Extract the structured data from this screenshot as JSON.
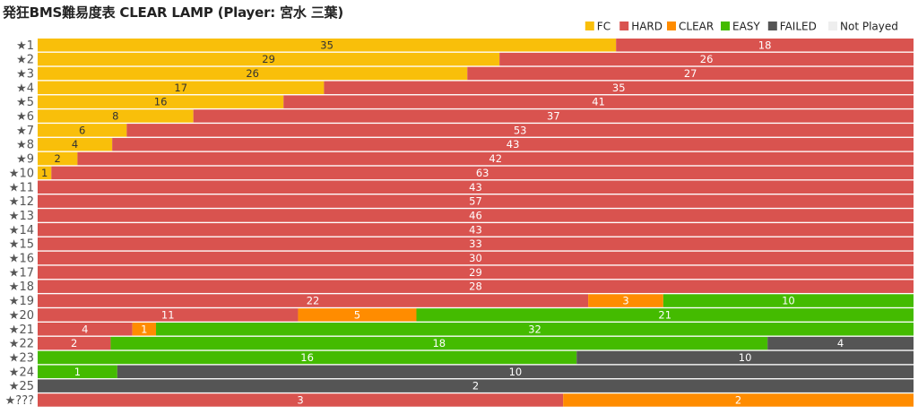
{
  "chart_data": {
    "type": "bar",
    "orientation": "horizontal",
    "stacked": "percent",
    "title": "発狂BMS難易度表 CLEAR LAMP (Player: 宮水 三葉)",
    "legend_position": "top-right",
    "grid": false,
    "categories": [
      "★1",
      "★2",
      "★3",
      "★4",
      "★5",
      "★6",
      "★7",
      "★8",
      "★9",
      "★10",
      "★11",
      "★12",
      "★13",
      "★14",
      "★15",
      "★16",
      "★17",
      "★18",
      "★19",
      "★20",
      "★21",
      "★22",
      "★23",
      "★24",
      "★25",
      "★???"
    ],
    "series": [
      {
        "name": "FC",
        "color": "#f9bf0a",
        "label_color": "#333333",
        "values": [
          35,
          29,
          26,
          17,
          16,
          8,
          6,
          4,
          2,
          1,
          0,
          0,
          0,
          0,
          0,
          0,
          0,
          0,
          0,
          0,
          0,
          0,
          0,
          0,
          0,
          0
        ]
      },
      {
        "name": "HARD",
        "color": "#d9534f",
        "label_color": "#ffffff",
        "values": [
          18,
          26,
          27,
          35,
          41,
          37,
          53,
          43,
          42,
          63,
          43,
          57,
          46,
          43,
          33,
          30,
          29,
          28,
          22,
          11,
          4,
          2,
          0,
          0,
          0,
          3
        ]
      },
      {
        "name": "CLEAR",
        "color": "#ff8c00",
        "label_color": "#ffffff",
        "values": [
          0,
          0,
          0,
          0,
          0,
          0,
          0,
          0,
          0,
          0,
          0,
          0,
          0,
          0,
          0,
          0,
          0,
          0,
          3,
          5,
          1,
          0,
          0,
          0,
          0,
          2
        ]
      },
      {
        "name": "EASY",
        "color": "#44bb00",
        "label_color": "#ffffff",
        "values": [
          0,
          0,
          0,
          0,
          0,
          0,
          0,
          0,
          0,
          0,
          0,
          0,
          0,
          0,
          0,
          0,
          0,
          0,
          10,
          21,
          32,
          18,
          16,
          1,
          0,
          0
        ]
      },
      {
        "name": "FAILED",
        "color": "#555555",
        "label_color": "#ffffff",
        "values": [
          0,
          0,
          0,
          0,
          0,
          0,
          0,
          0,
          0,
          0,
          0,
          0,
          0,
          0,
          0,
          0,
          0,
          0,
          0,
          0,
          0,
          4,
          10,
          10,
          2,
          0
        ]
      },
      {
        "name": "Not Played",
        "color": "#eeeeee",
        "label_color": "#333333",
        "values": [
          0,
          0,
          0,
          0,
          0,
          0,
          0,
          0,
          0,
          0,
          0,
          0,
          0,
          0,
          0,
          0,
          0,
          0,
          0,
          0,
          0,
          0,
          0,
          0,
          0,
          0
        ]
      }
    ]
  }
}
